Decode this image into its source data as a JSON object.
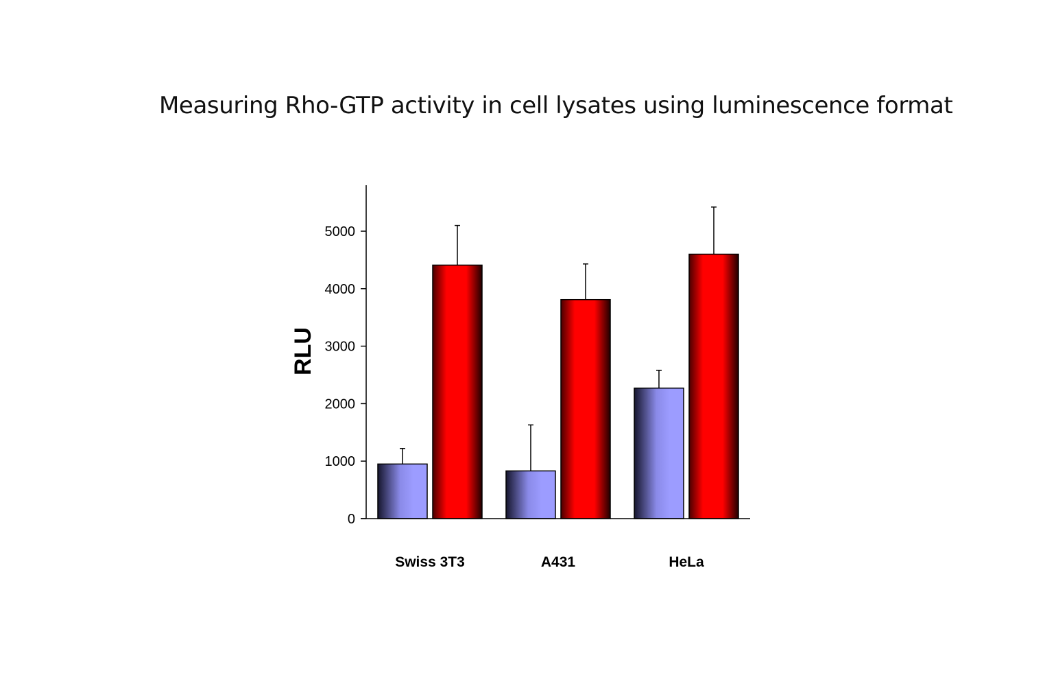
{
  "title": "Measuring Rho-GTP activity in cell lysates using luminescence format",
  "chart_data": {
    "type": "bar",
    "title": "",
    "xlabel": "",
    "ylabel": "RLU",
    "categories": [
      "Swiss 3T3",
      "A431",
      "HeLa"
    ],
    "series": [
      {
        "values": [
          950,
          830,
          2270
        ],
        "errors": [
          270,
          800,
          310
        ],
        "color": "#9999ff"
      },
      {
        "values": [
          4410,
          3810,
          4600
        ],
        "errors": [
          690,
          620,
          820
        ],
        "color": "#ff0000"
      }
    ],
    "ylim": [
      0,
      5000
    ],
    "yticks": [
      0,
      1000,
      2000,
      3000,
      4000,
      5000
    ],
    "ytick_labels": [
      "0",
      "1000",
      "2000",
      "3000",
      "4000",
      "5000"
    ],
    "grid": false,
    "legend": "none"
  }
}
